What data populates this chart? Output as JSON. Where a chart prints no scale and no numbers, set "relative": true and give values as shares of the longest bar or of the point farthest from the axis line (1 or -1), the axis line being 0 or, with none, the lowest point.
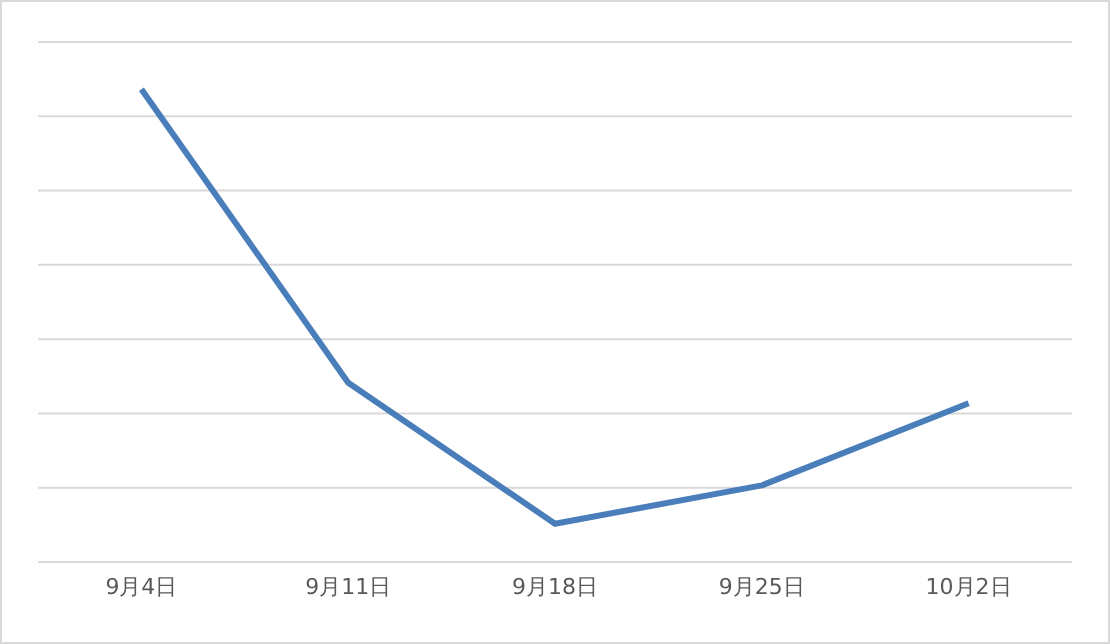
{
  "chart_data": {
    "type": "line",
    "relative": true,
    "categories": [
      "9月4日",
      "9月11日",
      "9月18日",
      "9月25日",
      "10月2日"
    ],
    "series": [
      {
        "color": "#4a7ebb",
        "values": [
          1,
          0.379,
          0.081,
          0.162,
          0.336
        ]
      }
    ],
    "grid": "y",
    "marker": "none",
    "line_style": "solid"
  }
}
